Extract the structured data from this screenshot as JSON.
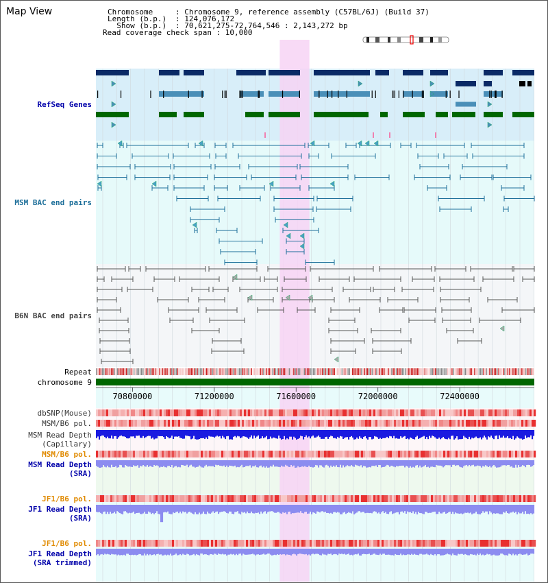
{
  "title": "Map View",
  "info": {
    "chromosome_key": "Chromosome",
    "chromosome_val": ": Chromosome 9, reference assembly (C57BL/6J) (Build 37)",
    "length_key": "Length (b.p.)",
    "length_val": ": 124,076,172",
    "show_key": "  Show (b.p.)",
    "show_val": ": 70,621,275-72,764,546 : 2,143,272 bp",
    "coverage": "Read coverage check span : 10,000"
  },
  "tracks": {
    "refseq": "RefSeq Genes",
    "msm_bac": "MSM BAC end pairs",
    "b6n_bac": "B6N BAC end pairs",
    "repeat": "Repeat",
    "chromosome": "chromosome 9",
    "dbsnp": "dbSNP(Mouse)",
    "msm_b6_pol": "MSM/B6 pol.",
    "msm_depth_cap_1": "MSM Read Depth",
    "msm_depth_cap_2": "(Capillary)",
    "msm_b6_pol2": "MSM/B6 pol.",
    "msm_depth_sra_1": "MSM Read Depth",
    "msm_depth_sra_2": "(SRA)",
    "jf1_b6_pol": "JF1/B6 pol.",
    "jf1_depth_sra_1": "JF1 Read Depth",
    "jf1_depth_sra_2": "(SRA)",
    "jf1_b6_pol2": "JF1/B6 pol.",
    "jf1_depth_trim_1": "JF1 Read Depth",
    "jf1_depth_trim_2": "(SRA trimmed)"
  },
  "axis": {
    "ticks": [
      "70800000",
      "71200000",
      "71600000",
      "72000000",
      "72400000"
    ],
    "tick_values": [
      70800000,
      71200000,
      71600000,
      72000000,
      72400000
    ],
    "range": [
      70621275,
      72764546
    ],
    "highlight_range": [
      71520000,
      71665000
    ]
  },
  "colors": {
    "refseq_bg": "#d8eef9",
    "msm_bg": "#e6fafa",
    "b6n_bg": "#f4f6f8",
    "highlight": "#f7d4f4",
    "gene_dark": "#0a2a66",
    "gene_mid": "#4a8fb8",
    "gene_green": "#006600",
    "msm_line": "#1c6e99",
    "b6n_line": "#555555",
    "chromosome": "#006600",
    "label_blue": "#0000aa",
    "label_orange": "#e08a00"
  }
}
